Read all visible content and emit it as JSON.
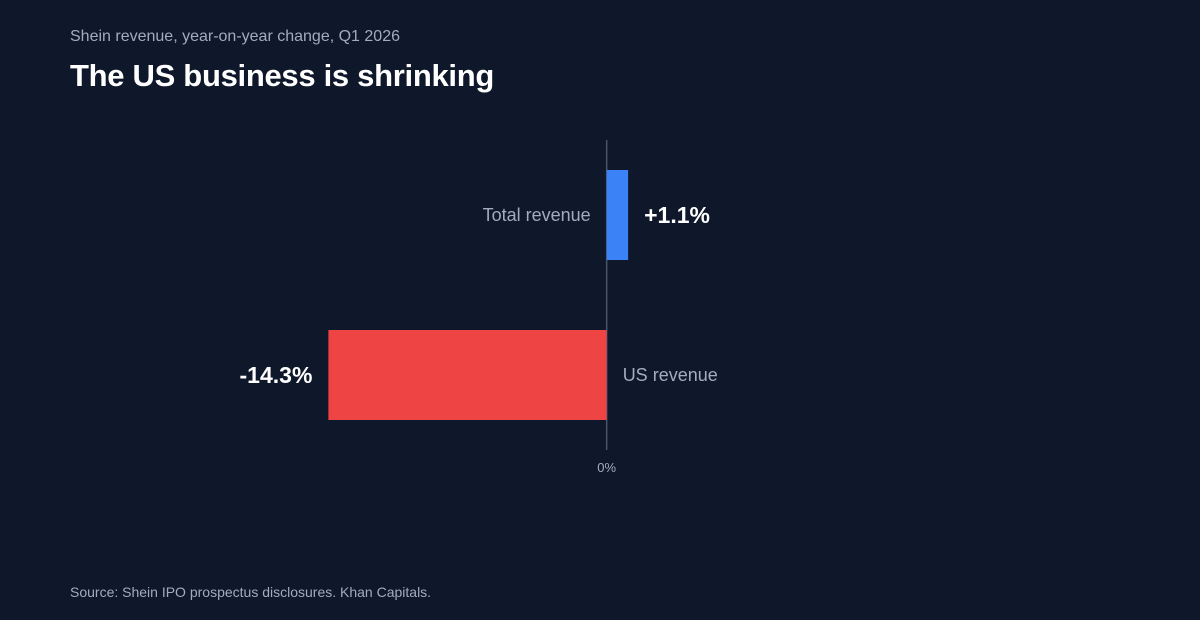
{
  "header": {
    "subtitle": "Shein revenue, year-on-year change, Q1 2026",
    "title": "The US business is shrinking"
  },
  "footer": {
    "source": "Source: Shein IPO prospectus disclosures. Khan Capitals."
  },
  "colors": {
    "background": "#0f172a",
    "positive": "#3b82f6",
    "negative": "#ef4444",
    "axis": "#475569",
    "category_label": "#a3acbd",
    "value_label": "#ffffff"
  },
  "chart_data": {
    "type": "bar",
    "orientation": "horizontal",
    "title": "The US business is shrinking",
    "subtitle": "Shein revenue, year-on-year change, Q1 2026",
    "categories": [
      "Total revenue",
      "US revenue"
    ],
    "values": [
      1.1,
      -14.3
    ],
    "value_labels": [
      "+1.1%",
      "-14.3%"
    ],
    "zero_label": "0%",
    "unit": "%",
    "xlim": [
      -21,
      18
    ],
    "grid": false,
    "legend": "none"
  }
}
